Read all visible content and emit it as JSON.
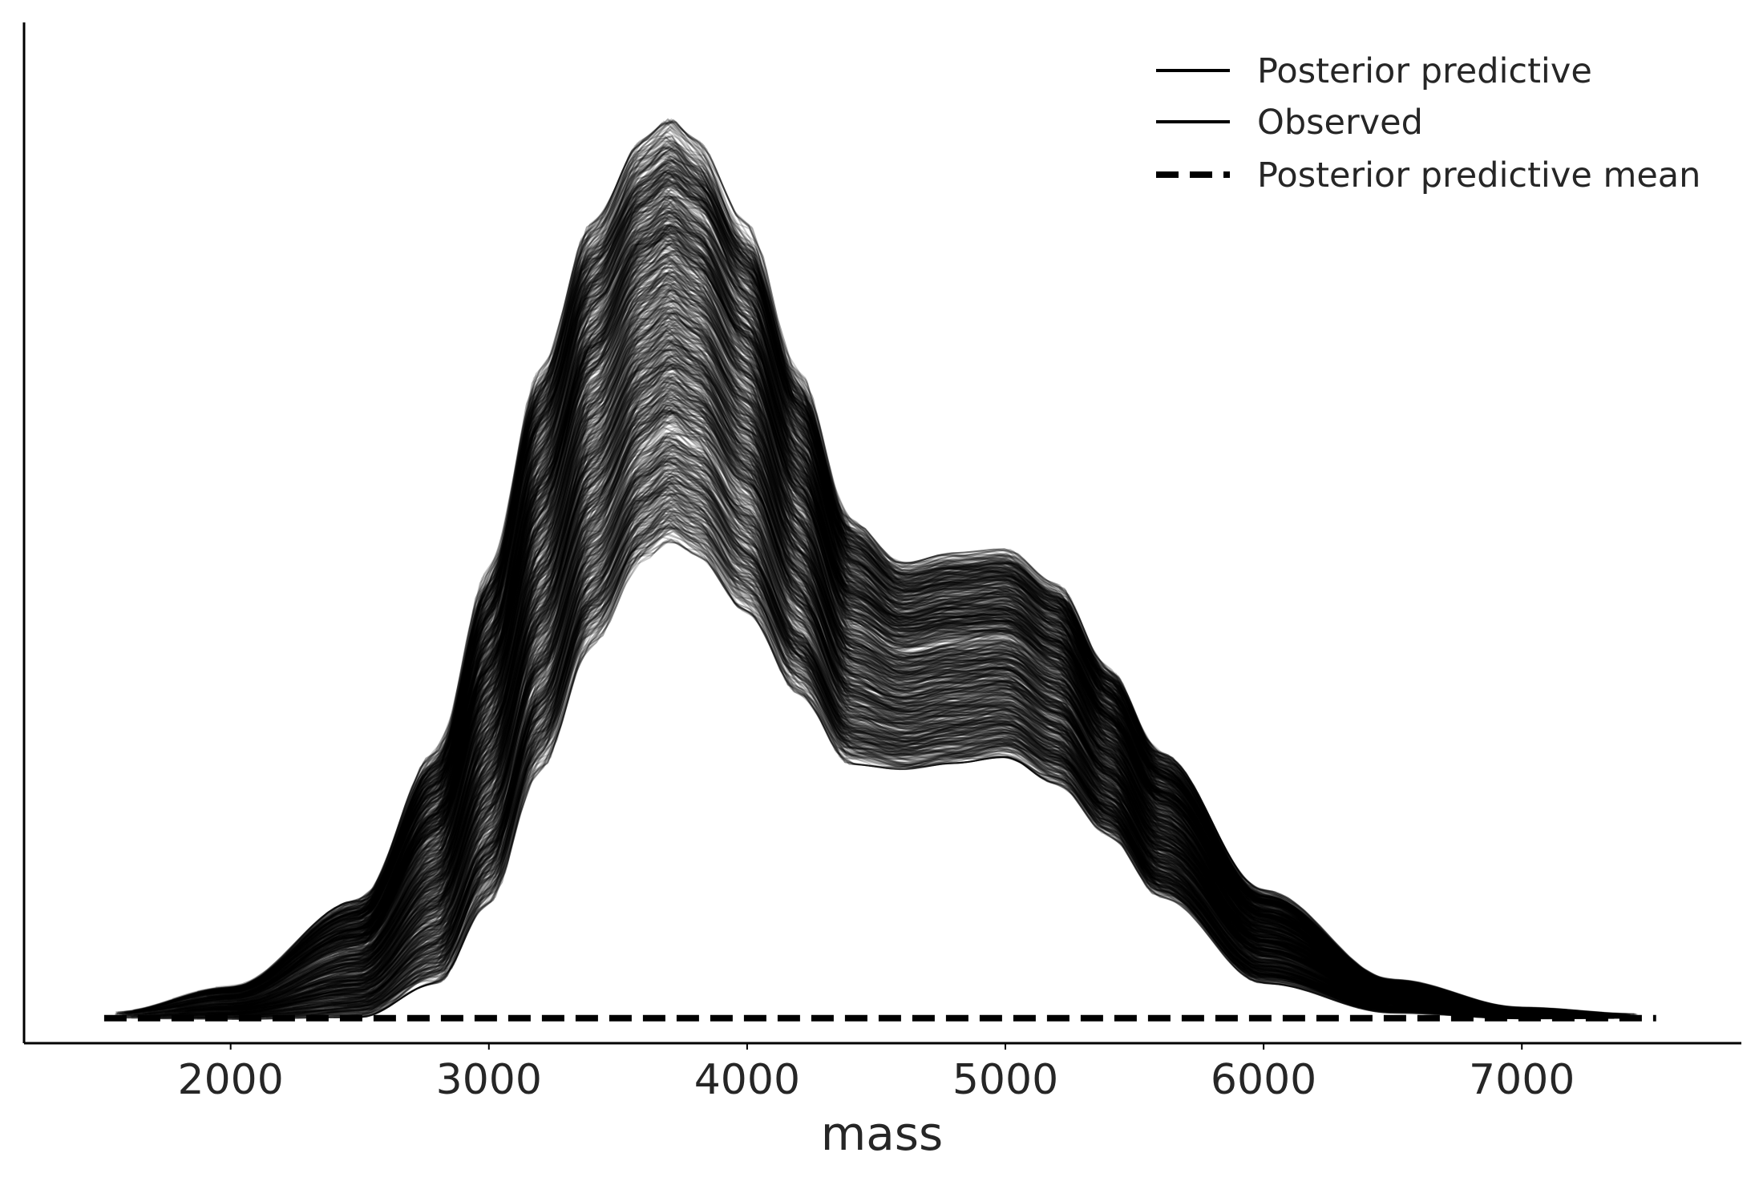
{
  "chart_data": {
    "type": "line",
    "title": "",
    "xlabel": "mass",
    "ylabel": "",
    "xlim": [
      1200,
      7850
    ],
    "ylim": [
      -1.2e-05,
      0.000477
    ],
    "x_ticks": [
      2000,
      3000,
      4000,
      5000,
      6000,
      7000
    ],
    "x_tick_labels": [
      "2000",
      "3000",
      "4000",
      "5000",
      "6000",
      "7000"
    ],
    "grid": false,
    "legend_position": "top-right",
    "legend": [
      {
        "label": "Posterior predictive",
        "style": "solid-thin"
      },
      {
        "label": "Observed",
        "style": "solid"
      },
      {
        "label": "Posterior predictive mean",
        "style": "dashed"
      }
    ],
    "series": [
      {
        "name": "Posterior predictive mean",
        "style": "dashed",
        "x": [
          1510,
          7520
        ],
        "y": [
          0,
          0
        ]
      }
    ],
    "posterior_predictive_band": {
      "x": [
        1550,
        2000,
        2500,
        2800,
        3000,
        3200,
        3400,
        3600,
        3700,
        3800,
        4000,
        4200,
        4400,
        4600,
        4800,
        5000,
        5200,
        5400,
        5600,
        6000,
        6500,
        7000,
        7450
      ],
      "lower": [
        0,
        0,
        2e-06,
        2e-05,
        6e-05,
        0.000125,
        0.000185,
        0.000225,
        0.000235,
        0.000228,
        0.0002,
        0.00016,
        0.000125,
        0.000122,
        0.000125,
        0.000128,
        0.000115,
        9e-05,
        6e-05,
        1.8e-05,
        3e-06,
        0,
        0
      ],
      "upper": [
        3e-06,
        1.5e-05,
        5.5e-05,
        0.000125,
        0.00021,
        0.000305,
        0.000375,
        0.000415,
        0.000425,
        0.000415,
        0.000375,
        0.000305,
        0.000235,
        0.000215,
        0.00022,
        0.000222,
        0.000205,
        0.000165,
        0.000125,
        6e-05,
        1.8e-05,
        5e-06,
        2e-06
      ]
    },
    "sample_curves": 900,
    "curve_color": "#000000"
  }
}
